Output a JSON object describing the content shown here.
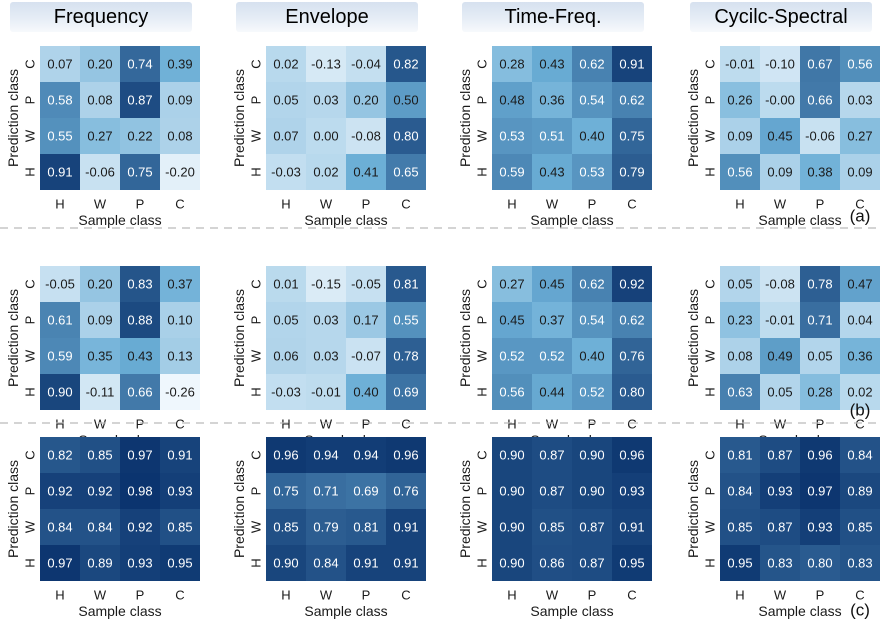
{
  "columns": [
    "Frequency",
    "Envelope",
    "Time-Freq.",
    "Cycilc-Spectral"
  ],
  "row_labels": [
    "(a)",
    "(b)",
    "(c)"
  ],
  "xlabel": "Sample class",
  "ylabel": "Prediction class",
  "x_ticks": [
    "H",
    "W",
    "P",
    "C"
  ],
  "y_ticks_top_to_bottom": [
    "C",
    "P",
    "W",
    "H"
  ],
  "colormap": {
    "low": "#f7fbff",
    "high": "#08306b"
  },
  "chart_data": {
    "type": "heatmap",
    "layout": "3 rows x 4 columns of 4x4 heatmaps",
    "rows_order_top_to_bottom": [
      "C",
      "P",
      "W",
      "H"
    ],
    "cols_order": [
      "H",
      "W",
      "P",
      "C"
    ],
    "panels": [
      {
        "row": "(a)",
        "column": "Frequency",
        "values": [
          [
            0.07,
            0.2,
            0.74,
            0.39
          ],
          [
            0.58,
            0.08,
            0.87,
            0.09
          ],
          [
            0.55,
            0.27,
            0.22,
            0.08
          ],
          [
            0.91,
            -0.06,
            0.75,
            -0.2
          ]
        ]
      },
      {
        "row": "(a)",
        "column": "Envelope",
        "values": [
          [
            0.02,
            -0.13,
            -0.04,
            0.82
          ],
          [
            0.05,
            0.03,
            0.2,
            0.5
          ],
          [
            0.07,
            0.0,
            -0.08,
            0.8
          ],
          [
            -0.03,
            0.02,
            0.41,
            0.65
          ]
        ]
      },
      {
        "row": "(a)",
        "column": "Time-Freq.",
        "values": [
          [
            0.28,
            0.43,
            0.62,
            0.91
          ],
          [
            0.48,
            0.36,
            0.54,
            0.62
          ],
          [
            0.53,
            0.51,
            0.4,
            0.75
          ],
          [
            0.59,
            0.43,
            0.53,
            0.79
          ]
        ]
      },
      {
        "row": "(a)",
        "column": "Cycilc-Spectral",
        "values": [
          [
            -0.01,
            -0.1,
            0.67,
            0.56
          ],
          [
            0.26,
            -0.0,
            0.66,
            0.03
          ],
          [
            0.09,
            0.45,
            -0.06,
            0.27
          ],
          [
            0.56,
            0.09,
            0.38,
            0.09
          ]
        ]
      },
      {
        "row": "(b)",
        "column": "Frequency",
        "values": [
          [
            -0.05,
            0.2,
            0.83,
            0.37
          ],
          [
            0.61,
            0.09,
            0.88,
            0.1
          ],
          [
            0.59,
            0.35,
            0.43,
            0.13
          ],
          [
            0.9,
            -0.11,
            0.66,
            -0.26
          ]
        ]
      },
      {
        "row": "(b)",
        "column": "Envelope",
        "values": [
          [
            0.01,
            -0.15,
            -0.05,
            0.81
          ],
          [
            0.05,
            0.03,
            0.17,
            0.55
          ],
          [
            0.06,
            0.03,
            -0.07,
            0.78
          ],
          [
            -0.03,
            -0.01,
            0.4,
            0.69
          ]
        ]
      },
      {
        "row": "(b)",
        "column": "Time-Freq.",
        "values": [
          [
            0.27,
            0.45,
            0.62,
            0.92
          ],
          [
            0.45,
            0.37,
            0.54,
            0.62
          ],
          [
            0.52,
            0.52,
            0.4,
            0.76
          ],
          [
            0.56,
            0.44,
            0.52,
            0.8
          ]
        ]
      },
      {
        "row": "(b)",
        "column": "Cycilc-Spectral",
        "values": [
          [
            0.05,
            -0.08,
            0.78,
            0.47
          ],
          [
            0.23,
            -0.01,
            0.71,
            0.04
          ],
          [
            0.08,
            0.49,
            0.05,
            0.36
          ],
          [
            0.63,
            0.05,
            0.28,
            0.02
          ]
        ]
      },
      {
        "row": "(c)",
        "column": "Frequency",
        "values": [
          [
            0.82,
            0.85,
            0.97,
            0.91
          ],
          [
            0.92,
            0.92,
            0.98,
            0.93
          ],
          [
            0.84,
            0.84,
            0.92,
            0.85
          ],
          [
            0.97,
            0.89,
            0.93,
            0.95
          ]
        ]
      },
      {
        "row": "(c)",
        "column": "Envelope",
        "values": [
          [
            0.96,
            0.94,
            0.94,
            0.96
          ],
          [
            0.75,
            0.71,
            0.69,
            0.76
          ],
          [
            0.85,
            0.79,
            0.81,
            0.91
          ],
          [
            0.9,
            0.84,
            0.91,
            0.91
          ]
        ]
      },
      {
        "row": "(c)",
        "column": "Time-Freq.",
        "values": [
          [
            0.9,
            0.87,
            0.9,
            0.96
          ],
          [
            0.9,
            0.87,
            0.9,
            0.93
          ],
          [
            0.9,
            0.85,
            0.87,
            0.91
          ],
          [
            0.9,
            0.86,
            0.87,
            0.95
          ]
        ]
      },
      {
        "row": "(c)",
        "column": "Cycilc-Spectral",
        "values": [
          [
            0.81,
            0.87,
            0.96,
            0.84
          ],
          [
            0.84,
            0.93,
            0.97,
            0.89
          ],
          [
            0.85,
            0.87,
            0.93,
            0.85
          ],
          [
            0.95,
            0.83,
            0.8,
            0.83
          ]
        ]
      }
    ]
  }
}
